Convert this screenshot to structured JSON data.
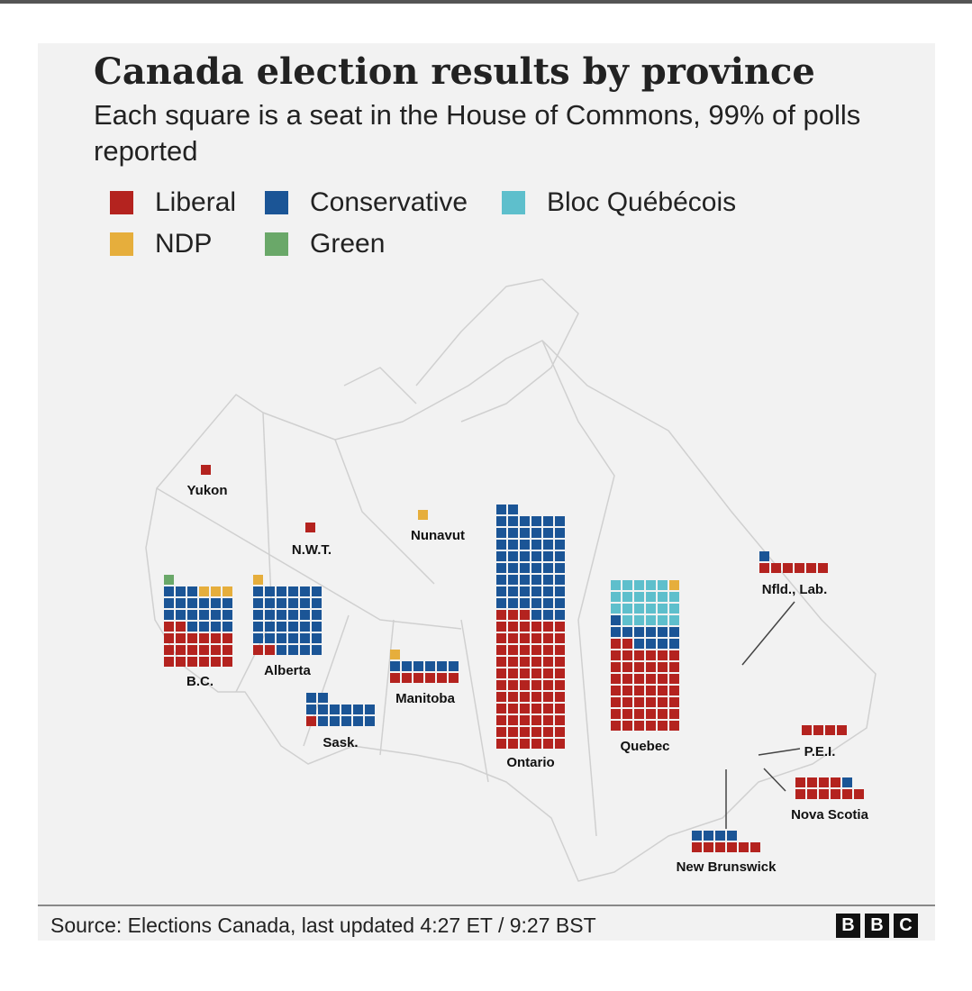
{
  "title": "Canada election results by province",
  "subtitle": "Each square is a seat in the House of Commons, 99% of polls reported",
  "legend": [
    {
      "label": "Liberal",
      "color": "#b4231f"
    },
    {
      "label": "Conservative",
      "color": "#1b5596"
    },
    {
      "label": "Bloc Québécois",
      "color": "#5ebfcc"
    },
    {
      "label": "NDP",
      "color": "#e6ae3c"
    },
    {
      "label": "Green",
      "color": "#6aa869"
    }
  ],
  "footer": {
    "source": "Source: Elections Canada, last updated  4:27 ET / 9:27 BST",
    "logo": [
      "B",
      "B",
      "C"
    ]
  },
  "chart_data": {
    "type": "waffle",
    "unit": "seats",
    "parties": [
      "Liberal",
      "Conservative",
      "Bloc Québécois",
      "NDP",
      "Green"
    ],
    "provinces": [
      {
        "name": "Yukon",
        "seats": {
          "Liberal": 1
        }
      },
      {
        "name": "N.W.T.",
        "seats": {
          "Liberal": 1
        }
      },
      {
        "name": "Nunavut",
        "seats": {
          "NDP": 1
        }
      },
      {
        "name": "B.C.",
        "seats": {
          "Liberal": 20,
          "Conservative": 19,
          "NDP": 3,
          "Green": 1
        }
      },
      {
        "name": "Alberta",
        "seats": {
          "Liberal": 2,
          "Conservative": 34,
          "NDP": 1
        }
      },
      {
        "name": "Sask.",
        "seats": {
          "Liberal": 1,
          "Conservative": 13
        }
      },
      {
        "name": "Manitoba",
        "seats": {
          "Liberal": 6,
          "Conservative": 6,
          "NDP": 1
        }
      },
      {
        "name": "Ontario",
        "seats": {
          "Liberal": 69,
          "Conservative": 53
        }
      },
      {
        "name": "Quebec",
        "seats": {
          "Liberal": 44,
          "Conservative": 11,
          "Bloc Québécois": 22,
          "NDP": 1
        }
      },
      {
        "name": "Nfld., Lab.",
        "seats": {
          "Liberal": 6,
          "Conservative": 1
        }
      },
      {
        "name": "P.E.I.",
        "seats": {
          "Liberal": 4
        }
      },
      {
        "name": "Nova Scotia",
        "seats": {
          "Liberal": 10,
          "Conservative": 1
        }
      },
      {
        "name": "New Brunswick",
        "seats": {
          "Liberal": 6,
          "Conservative": 4
        }
      }
    ]
  }
}
